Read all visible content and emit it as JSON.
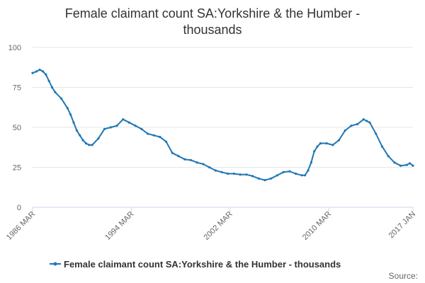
{
  "chart_data": {
    "type": "line",
    "title_line1": "Female claimant count SA:Yorkshire & the Humber -",
    "title_line2": "thousands",
    "xlabel": "",
    "ylabel": "",
    "ylim": [
      0,
      100
    ],
    "yticks": [
      "0",
      "25",
      "50",
      "75",
      "100"
    ],
    "xticks": [
      "1986 MAR",
      "1994 MAR",
      "2002 MAR",
      "2010 MAR",
      "2017 JAN"
    ],
    "grid": "horizontal",
    "legend_position": "bottom",
    "source_label": "Source:",
    "colors": {
      "series": "#1f77b4",
      "grid": "#e6e6e6",
      "axis": "#ccd6eb"
    },
    "series": [
      {
        "name": "Female claimant count SA:Yorkshire & the Humber - thousands",
        "x": [
          1986.17,
          1986.5,
          1986.75,
          1987.0,
          1987.25,
          1987.5,
          1987.75,
          1988.0,
          1988.5,
          1989.0,
          1989.25,
          1989.5,
          1989.75,
          1990.0,
          1990.25,
          1990.5,
          1990.75,
          1991.0,
          1991.5,
          1992.0,
          1992.5,
          1993.0,
          1993.5,
          1994.0,
          1994.5,
          1995.0,
          1995.5,
          1996.0,
          1996.5,
          1997.0,
          1997.5,
          1998.0,
          1998.5,
          1999.0,
          1999.5,
          2000.0,
          2000.5,
          2001.0,
          2001.5,
          2002.0,
          2002.5,
          2003.0,
          2003.5,
          2004.0,
          2004.5,
          2005.0,
          2005.5,
          2006.0,
          2006.5,
          2007.0,
          2007.5,
          2008.0,
          2008.25,
          2008.5,
          2008.75,
          2009.0,
          2009.25,
          2009.5,
          2010.0,
          2010.5,
          2011.0,
          2011.5,
          2012.0,
          2012.5,
          2013.0,
          2013.25,
          2013.5,
          2014.0,
          2014.5,
          2015.0,
          2015.5,
          2016.0,
          2016.5,
          2016.75,
          2017.0
        ],
        "y": [
          84,
          85,
          86,
          85,
          83,
          79,
          75,
          72,
          68,
          62,
          58,
          53,
          48,
          45,
          42,
          40,
          39,
          39,
          43,
          49,
          50,
          51,
          55,
          53,
          51,
          49,
          46,
          45,
          44,
          41,
          34,
          32,
          30,
          29.5,
          28,
          27,
          25,
          23,
          22,
          21,
          21,
          20.5,
          20.5,
          19.5,
          18,
          17,
          18,
          20,
          22,
          22.5,
          21,
          20,
          20,
          23,
          28,
          35,
          38,
          40,
          40,
          39,
          42,
          48,
          51,
          52,
          55,
          54,
          53,
          46,
          38,
          32,
          28,
          26,
          26.5,
          27.5,
          26
        ]
      }
    ]
  }
}
